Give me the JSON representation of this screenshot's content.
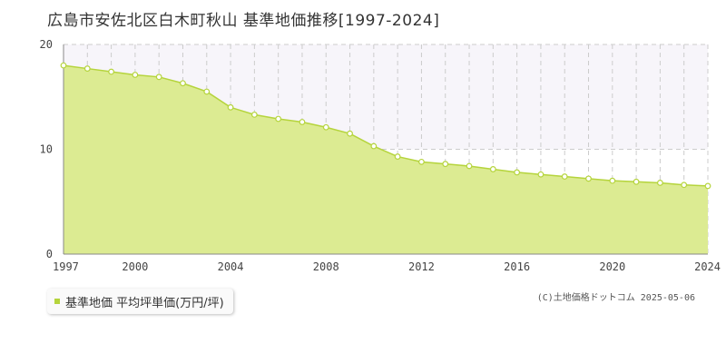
{
  "chart_data": {
    "type": "area",
    "title": "広島市安佐北区白木町秋山 基準地価推移[1997-2024]",
    "x": [
      1997,
      1998,
      1999,
      2000,
      2001,
      2002,
      2003,
      2004,
      2005,
      2006,
      2007,
      2008,
      2009,
      2010,
      2011,
      2012,
      2013,
      2014,
      2015,
      2016,
      2017,
      2018,
      2019,
      2020,
      2021,
      2022,
      2023,
      2024
    ],
    "series": [
      {
        "name": "基準地価 平均坪単価(万円/坪)",
        "values": [
          18.0,
          17.7,
          17.4,
          17.1,
          16.9,
          16.3,
          15.5,
          14.0,
          13.3,
          12.9,
          12.6,
          12.1,
          11.5,
          10.3,
          9.3,
          8.8,
          8.6,
          8.4,
          8.1,
          7.8,
          7.6,
          7.4,
          7.2,
          7.0,
          6.9,
          6.8,
          6.6,
          6.5
        ]
      }
    ],
    "x_ticks": [
      "1997",
      "2000",
      "2004",
      "2008",
      "2012",
      "2016",
      "2020",
      "2024"
    ],
    "y_ticks": [
      "0",
      "10",
      "20"
    ],
    "xlim": [
      1997,
      2024
    ],
    "ylim": [
      0,
      20
    ],
    "grid": true,
    "legend_position": "bottom-left",
    "colors": {
      "area_fill": "#dceb92",
      "line": "#b5d43c",
      "marker_fill": "#ffffff",
      "band": "#f7f5fa",
      "grid": "#cccccc",
      "axis": "#888888",
      "legend_swatch": "#b5d43c"
    }
  },
  "legend": {
    "label": "基準地価 平均坪単価(万円/坪)"
  },
  "copyright": "(C)土地価格ドットコム 2025-05-06"
}
